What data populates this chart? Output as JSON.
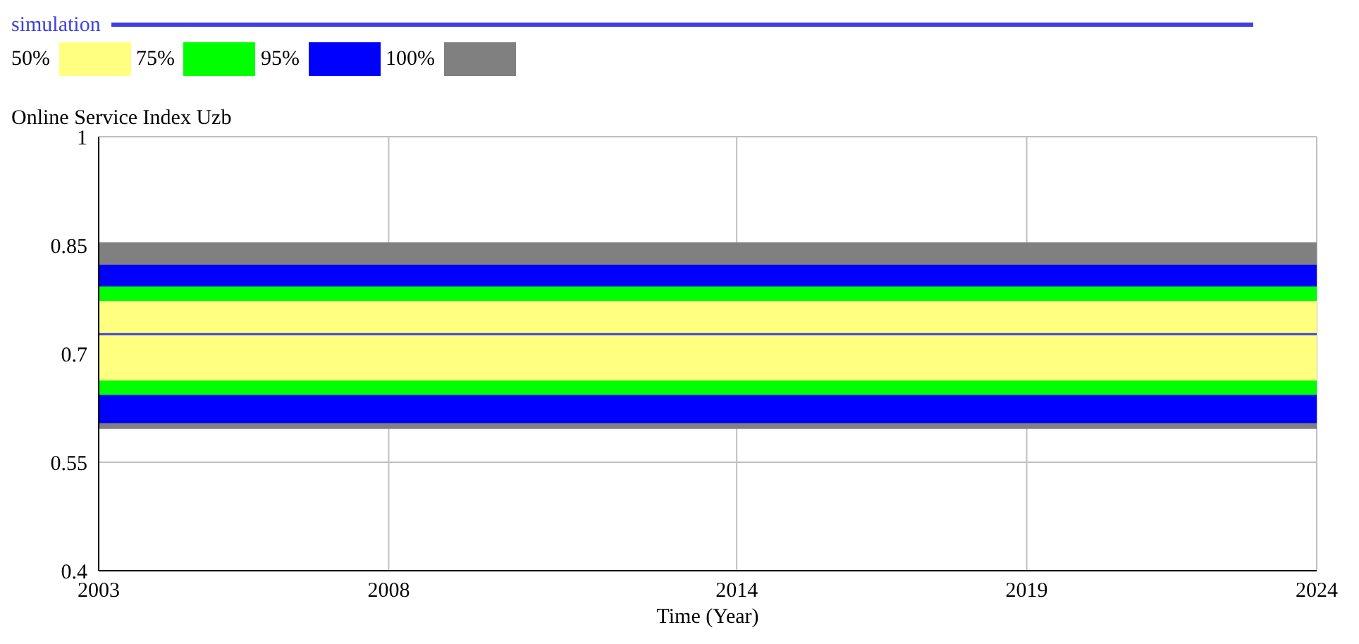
{
  "chart_data": {
    "type": "line",
    "ylabel": "Online Service Index Uzb",
    "xlabel": "Time (Year)",
    "x": [
      2003,
      2024
    ],
    "series": [
      {
        "name": "simulation",
        "color": "#4040e0",
        "values": [
          0.727,
          0.727
        ]
      }
    ],
    "bands": [
      {
        "axis": "y",
        "from": 0.596,
        "to": 0.854,
        "label": "100%",
        "color": "#808080"
      },
      {
        "axis": "y",
        "from": 0.604,
        "to": 0.823,
        "label": "95%",
        "color": "#0000ff"
      },
      {
        "axis": "y",
        "from": 0.643,
        "to": 0.793,
        "label": "75%",
        "color": "#00ff00"
      },
      {
        "axis": "y",
        "from": 0.663,
        "to": 0.773,
        "label": "50%",
        "color": "#ffff80"
      }
    ],
    "xlim": [
      2003,
      2024
    ],
    "xticks": [
      2003,
      2008,
      2014,
      2019,
      2024
    ],
    "ylim": [
      0.4,
      1
    ],
    "yticks": [
      0.4,
      0.55,
      0.7,
      0.85,
      1
    ],
    "grid": true,
    "legend": "top left",
    "marker": "none",
    "line_style": "solid"
  }
}
